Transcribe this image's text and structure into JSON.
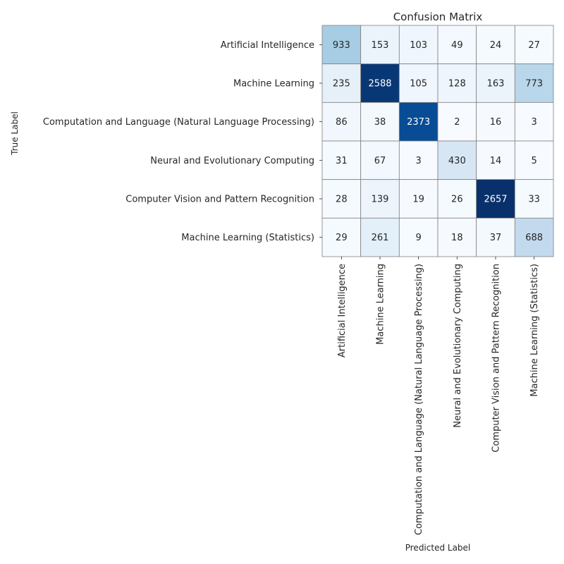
{
  "chart_data": {
    "type": "heatmap",
    "title": "Confusion Matrix",
    "xlabel": "Predicted Label",
    "ylabel": "True Label",
    "categories": [
      "Artificial Intelligence",
      "Machine Learning",
      "Computation and Language (Natural Language Processing)",
      "Neural and Evolutionary Computing",
      "Computer Vision and Pattern Recognition",
      "Machine Learning (Statistics)"
    ],
    "matrix": [
      [
        933,
        153,
        103,
        49,
        24,
        27
      ],
      [
        235,
        2588,
        105,
        128,
        163,
        773
      ],
      [
        86,
        38,
        2373,
        2,
        16,
        3
      ],
      [
        31,
        67,
        3,
        430,
        14,
        5
      ],
      [
        28,
        139,
        19,
        26,
        2657,
        33
      ],
      [
        29,
        261,
        9,
        18,
        37,
        688
      ]
    ],
    "colormap": "Blues",
    "grid_color": "#808080",
    "colorbar": false
  }
}
